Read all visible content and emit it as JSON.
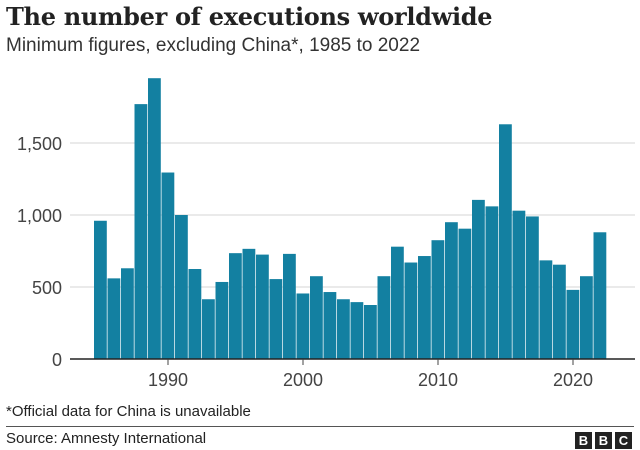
{
  "chart_data": {
    "type": "bar",
    "title": "The number of executions worldwide",
    "subtitle": "Minimum figures, excluding China*, 1985 to 2022",
    "xlabel": "",
    "ylabel": "",
    "ylim": [
      0,
      2000
    ],
    "yticks": [
      0,
      500,
      1000,
      1500
    ],
    "ytick_labels": [
      "0",
      "500",
      "1,000",
      "1,500"
    ],
    "xticks": [
      1990,
      2000,
      2010,
      2020
    ],
    "xtick_labels": [
      "1990",
      "2000",
      "2010",
      "2020"
    ],
    "grid": true,
    "color": "#1380A1",
    "categories": [
      1985,
      1986,
      1987,
      1988,
      1989,
      1990,
      1991,
      1992,
      1993,
      1994,
      1995,
      1996,
      1997,
      1998,
      1999,
      2000,
      2001,
      2002,
      2003,
      2004,
      2005,
      2006,
      2007,
      2008,
      2009,
      2010,
      2011,
      2012,
      2013,
      2014,
      2015,
      2016,
      2017,
      2018,
      2019,
      2020,
      2021,
      2022
    ],
    "values": [
      960,
      560,
      630,
      1770,
      1950,
      1295,
      1000,
      625,
      415,
      535,
      735,
      765,
      725,
      555,
      730,
      455,
      575,
      465,
      415,
      395,
      375,
      575,
      780,
      670,
      715,
      825,
      950,
      905,
      1105,
      1060,
      1630,
      1030,
      990,
      685,
      655,
      480,
      575,
      880
    ]
  },
  "footnote": "*Official data for China is unavailable",
  "source": "Source: Amnesty International",
  "logo": "BBC"
}
